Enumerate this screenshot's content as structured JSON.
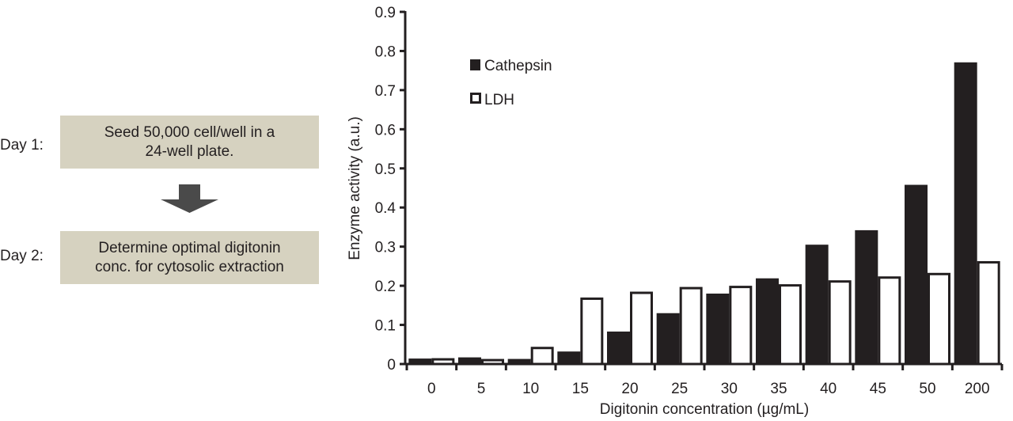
{
  "protocol": {
    "steps": [
      {
        "day": "Day 1:",
        "lines": [
          "Seed 50,000 cell/well in a",
          "24-well plate."
        ]
      },
      {
        "day": "Day 2:",
        "lines": [
          "Determine optimal digitonin",
          "conc. for cytosolic extraction"
        ]
      }
    ],
    "arrow_icon": "arrow-down-icon",
    "box_color": "#d6d2c0",
    "arrow_color": "#4a4a4a"
  },
  "chart_data": {
    "type": "bar",
    "title": "",
    "xlabel": "Digitonin concentration (µg/mL)",
    "ylabel": "Enzyme activity (a.u.)",
    "ylim": [
      0,
      0.9
    ],
    "yticks": [
      "0",
      "0.1",
      "0.2",
      "0.3",
      "0.4",
      "0.5",
      "0.6",
      "0.7",
      "0.8",
      "0.9"
    ],
    "categories": [
      "0",
      "5",
      "10",
      "15",
      "20",
      "25",
      "30",
      "35",
      "40",
      "45",
      "50",
      "200"
    ],
    "grid": false,
    "legend_position": "top-left",
    "series": [
      {
        "name": "Cathepsin",
        "color": "#231f20",
        "fill": "solid",
        "values": [
          0.014,
          0.017,
          0.013,
          0.032,
          0.083,
          0.13,
          0.18,
          0.219,
          0.305,
          0.342,
          0.458,
          0.771
        ]
      },
      {
        "name": "LDH",
        "color": "#ffffff",
        "fill": "outline",
        "values": [
          0.015,
          0.013,
          0.044,
          0.17,
          0.185,
          0.197,
          0.2,
          0.204,
          0.214,
          0.224,
          0.233,
          0.263
        ]
      }
    ]
  }
}
